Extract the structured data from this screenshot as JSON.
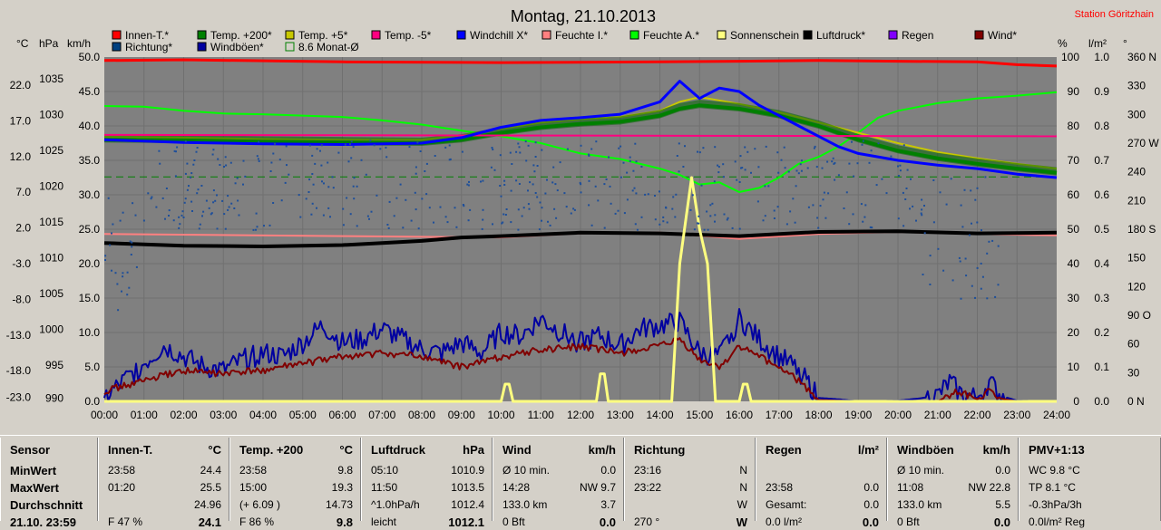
{
  "chart_data": {
    "type": "line",
    "title": "Montag, 21.10.2013",
    "station": "Station Göritzhain",
    "legend": [
      {
        "name": "Innen-T.*",
        "color": "#ff0000"
      },
      {
        "name": "Temp. +200*",
        "color": "#008000"
      },
      {
        "name": "Temp. +5*",
        "color": "#c8c800"
      },
      {
        "name": "Temp. -5*",
        "color": "#ff0080"
      },
      {
        "name": "Windchill X*",
        "color": "#0000ff"
      },
      {
        "name": "Feuchte I.*",
        "color": "#ff8080"
      },
      {
        "name": "Feuchte A.*",
        "color": "#00ff00"
      },
      {
        "name": "Sonnenschein",
        "color": "#ffff80"
      },
      {
        "name": "Luftdruck*",
        "color": "#000000"
      },
      {
        "name": "Regen",
        "color": "#8000ff"
      },
      {
        "name": "Wind*",
        "color": "#800000"
      },
      {
        "name": "Richtung*",
        "color": "#004080"
      },
      {
        "name": "Windböen*",
        "color": "#0000a0"
      },
      {
        "name": "8.6 Monat-Ø",
        "color": "#008000"
      }
    ],
    "axis_headers": {
      "temp": "°C",
      "press": "hPa",
      "wind": "km/h",
      "pct": "%",
      "rain": "l/m²",
      "dir": "°"
    },
    "temp_ticks": [
      "22.0",
      "17.0",
      "12.0",
      "7.0",
      "2.0",
      "-3.0",
      "-8.0",
      "-13.0",
      "-18.0",
      "-23.0"
    ],
    "press_ticks": [
      "1035",
      "1030",
      "1025",
      "1020",
      "1015",
      "1010",
      "1005",
      "1000",
      "995",
      "990"
    ],
    "wind_ticks": [
      "50.0",
      "45.0",
      "40.0",
      "35.0",
      "30.0",
      "25.0",
      "20.0",
      "15.0",
      "10.0",
      "5.0",
      "0.0"
    ],
    "pct_ticks": [
      "100",
      "90",
      "80",
      "70",
      "60",
      "50",
      "40",
      "30",
      "20",
      "10",
      "0"
    ],
    "rain_ticks": [
      "1.0",
      "0.9",
      "0.8",
      "0.7",
      "0.6",
      "0.5",
      "0.4",
      "0.3",
      "0.2",
      "0.1",
      "0.0"
    ],
    "dir_ticks": [
      "360 N",
      "330",
      "300",
      "270 W",
      "240",
      "210",
      "180 S",
      "150",
      "120",
      "90 O",
      "60",
      "30",
      "0 N"
    ],
    "x_ticks": [
      "00:00",
      "01:00",
      "02:00",
      "03:00",
      "04:00",
      "05:00",
      "06:00",
      "07:00",
      "08:00",
      "09:00",
      "10:00",
      "11:00",
      "12:00",
      "13:00",
      "14:00",
      "15:00",
      "16:00",
      "17:00",
      "18:00",
      "19:00",
      "20:00",
      "21:00",
      "22:00",
      "23:00",
      "24:00"
    ],
    "xlim": [
      0,
      24
    ],
    "wind_ylim": [
      0,
      50
    ],
    "series": [
      {
        "name": "Innen-T.*",
        "axis": "wind",
        "x": [
          0,
          2,
          6,
          10,
          14,
          16,
          18,
          20,
          22,
          23,
          24
        ],
        "values": [
          49.5,
          49.6,
          49.3,
          49.2,
          49.3,
          49.4,
          49.5,
          49.4,
          49.3,
          48.9,
          48.7
        ]
      },
      {
        "name": "Feuchte A.*",
        "axis": "wind",
        "x": [
          0,
          1,
          2,
          3,
          4,
          5,
          6,
          7,
          8,
          9,
          10,
          11,
          12,
          13,
          14,
          14.5,
          15,
          15.5,
          16,
          16.5,
          17,
          17.5,
          18,
          18.5,
          19,
          19.5,
          20,
          21,
          22,
          23,
          24
        ],
        "values": [
          42.9,
          42.8,
          42.2,
          41.8,
          41.7,
          41.5,
          41.3,
          40.8,
          40.2,
          39.3,
          38.5,
          37.5,
          36.0,
          35.2,
          33.8,
          32.9,
          31.5,
          31.8,
          30.4,
          31.0,
          32.5,
          34.5,
          35.5,
          37.0,
          39.0,
          41.2,
          42.2,
          43.3,
          44.0,
          44.4,
          44.9
        ]
      },
      {
        "name": "Temp. +5*",
        "axis": "wind",
        "x": [
          0,
          2,
          4,
          6,
          8,
          9,
          10,
          11,
          12,
          13,
          14,
          14.5,
          15,
          16,
          17,
          18,
          19,
          20,
          21,
          22,
          23,
          24
        ],
        "values": [
          38.4,
          38.3,
          38.1,
          38.0,
          38.0,
          38.6,
          39.6,
          40.5,
          41.0,
          41.3,
          42.2,
          43.5,
          44.2,
          43.2,
          42.0,
          40.5,
          39.0,
          37.5,
          36.2,
          35.3,
          34.5,
          33.8
        ]
      },
      {
        "name": "Temp. +200*",
        "axis": "wind",
        "x": [
          0,
          2,
          4,
          6,
          8,
          9,
          10,
          11,
          12,
          13,
          14,
          14.5,
          15,
          16,
          17,
          18,
          19,
          20,
          21,
          22,
          23,
          24
        ],
        "values": [
          38.0,
          37.9,
          37.7,
          37.6,
          37.5,
          38.0,
          39.0,
          39.8,
          40.3,
          40.6,
          41.5,
          42.5,
          43.0,
          42.5,
          41.5,
          40.0,
          38.0,
          36.4,
          35.3,
          34.5,
          33.8,
          33.2
        ]
      },
      {
        "name": "Temp. -5*",
        "axis": "wind",
        "x": [
          0,
          24
        ],
        "values": [
          38.7,
          38.5
        ]
      },
      {
        "name": "Windchill X*",
        "axis": "wind",
        "x": [
          0,
          2,
          4,
          6,
          8,
          9,
          10,
          11,
          12,
          13,
          14,
          14.5,
          15,
          15.5,
          16,
          16.5,
          17,
          17.5,
          18,
          18.5,
          19,
          20,
          21,
          22,
          23,
          24
        ],
        "values": [
          38.0,
          37.6,
          37.4,
          37.3,
          37.5,
          38.3,
          39.8,
          40.8,
          41.2,
          41.7,
          43.5,
          46.5,
          44.0,
          45.5,
          45.0,
          43.0,
          41.5,
          40.0,
          38.5,
          37.0,
          36.0,
          35.0,
          34.3,
          33.8,
          33.0,
          32.5
        ]
      },
      {
        "name": "Feuchte I.*",
        "axis": "wind",
        "x": [
          0,
          6,
          10,
          12,
          14,
          16,
          18,
          20,
          22,
          24
        ],
        "values": [
          24.3,
          24.0,
          23.8,
          24.4,
          24.5,
          23.6,
          24.3,
          24.6,
          24.3,
          24.1
        ]
      },
      {
        "name": "Luftdruck*",
        "axis": "wind",
        "x": [
          0,
          1,
          2,
          4,
          6,
          7,
          8,
          9,
          10,
          12,
          14,
          16,
          18,
          20,
          22,
          24
        ],
        "values": [
          23.0,
          22.8,
          22.6,
          22.5,
          22.7,
          23.0,
          23.3,
          23.8,
          24.0,
          24.5,
          24.4,
          24.0,
          24.6,
          24.7,
          24.4,
          24.5
        ]
      },
      {
        "name": "Windböen*",
        "axis": "wind",
        "x": [
          0,
          0.5,
          1,
          1.5,
          2,
          2.5,
          3,
          3.5,
          4,
          4.5,
          5,
          5.5,
          6,
          6.5,
          7,
          7.5,
          8,
          8.5,
          9,
          9.5,
          10,
          10.5,
          11,
          11.5,
          12,
          12.5,
          13,
          13.5,
          14,
          14.5,
          15,
          15.5,
          16,
          16.5,
          17,
          17.5,
          18,
          18.5,
          19,
          20,
          20.5,
          21,
          21.3,
          21.6,
          22,
          22.3,
          22.6,
          23,
          24
        ],
        "values": [
          0.5,
          3.0,
          5.5,
          8.0,
          6.5,
          5.0,
          4.5,
          6.0,
          7.0,
          6.5,
          8.5,
          11.0,
          8.5,
          9.0,
          10.5,
          9.0,
          7.5,
          7.0,
          8.5,
          7.0,
          10.0,
          9.5,
          12.0,
          10.0,
          8.5,
          9.5,
          8.0,
          10.5,
          11.0,
          11.5,
          7.0,
          6.5,
          12.0,
          9.0,
          6.5,
          4.5,
          0.5,
          0.3,
          0.0,
          0.1,
          0.4,
          0.8,
          2.8,
          1.0,
          0.5,
          2.8,
          0.8,
          0.1,
          0.0
        ]
      },
      {
        "name": "Wind*",
        "axis": "wind",
        "x": [
          0,
          1,
          2,
          3,
          4,
          5,
          6,
          7,
          8,
          9,
          10,
          11,
          12,
          13,
          14,
          14.5,
          15,
          15.5,
          16,
          16.5,
          17,
          17.5,
          18,
          19,
          20,
          21,
          21.5,
          22,
          22.3,
          22.6,
          23,
          24
        ],
        "values": [
          1.5,
          3.0,
          4.5,
          4.0,
          4.5,
          5.5,
          6.5,
          7.0,
          6.5,
          5.0,
          6.5,
          7.5,
          8.0,
          7.0,
          8.0,
          9.0,
          6.0,
          5.0,
          8.0,
          6.5,
          5.0,
          3.0,
          0.2,
          0.0,
          0.0,
          0.0,
          1.5,
          0.3,
          1.5,
          0.4,
          0.0,
          0.0
        ]
      },
      {
        "name": "Sonnenschein",
        "axis": "wind",
        "x": [
          0,
          10,
          10.1,
          10.2,
          10.3,
          12.4,
          12.5,
          12.6,
          12.7,
          14.3,
          14.5,
          14.8,
          15.0,
          15.2,
          15.4,
          15.5,
          16,
          16.1,
          16.2,
          16.3,
          24
        ],
        "values": [
          0,
          0,
          2.5,
          2.5,
          0,
          0,
          4,
          4,
          0,
          0,
          20.0,
          32.5,
          25.0,
          20.0,
          0,
          0,
          0,
          2.5,
          2.5,
          0,
          0
        ]
      }
    ],
    "monthly_avg": {
      "name": "8.6 Monat-Ø",
      "value": 32.6
    }
  },
  "table": [
    {
      "header": "Sensor",
      "unit": "",
      "rows": [
        {
          "label": "MinWert"
        },
        {
          "label": "MaxWert"
        },
        {
          "label": "Durchschnitt"
        },
        {
          "label": "21.10. 23:59"
        }
      ]
    },
    {
      "header": "Innen-T.",
      "unit": "°C",
      "rows": [
        {
          "a": "23:58",
          "b": "24.4"
        },
        {
          "a": "01:20",
          "b": "25.5"
        },
        {
          "a": "",
          "b": "24.96"
        },
        {
          "a": "F 47 %",
          "b": "24.1"
        }
      ]
    },
    {
      "header": "Temp. +200",
      "unit": "°C",
      "rows": [
        {
          "a": "23:58",
          "b": "9.8"
        },
        {
          "a": "15:00",
          "b": "19.3"
        },
        {
          "a": "(+ 6.09 )",
          "b": "14.73"
        },
        {
          "a": "F 86 %",
          "b": "9.8"
        }
      ]
    },
    {
      "header": "Luftdruck",
      "unit": "hPa",
      "rows": [
        {
          "a": "05:10",
          "b": "1010.9"
        },
        {
          "a": "11:50",
          "b": "1013.5"
        },
        {
          "a": "^1.0hPa/h",
          "b": "1012.4"
        },
        {
          "a": "leicht",
          "b": "1012.1"
        }
      ]
    },
    {
      "header": "Wind",
      "unit": "km/h",
      "rows": [
        {
          "a": "Ø 10 min.",
          "b": "0.0"
        },
        {
          "a": "14:28",
          "m": "NW 9.7",
          "b": ""
        },
        {
          "a": "133.0 km",
          "b": "3.7"
        },
        {
          "a": "0 Bft",
          "b": "0.0"
        }
      ]
    },
    {
      "header": "Richtung",
      "unit": "",
      "rows": [
        {
          "a": "23:16",
          "b": "N"
        },
        {
          "a": "23:22",
          "b": "N"
        },
        {
          "a": "",
          "b": "W"
        },
        {
          "a": "270 °",
          "b": "W"
        }
      ]
    },
    {
      "header": "Regen",
      "unit": "l/m²",
      "rows": [
        {
          "a": "",
          "b": ""
        },
        {
          "a": "23:58",
          "b": "0.0"
        },
        {
          "a": "Gesamt:",
          "b": "0.0"
        },
        {
          "a": "0.0 l/m²",
          "b": "0.0"
        }
      ]
    },
    {
      "header": "Windböen",
      "unit": "km/h",
      "rows": [
        {
          "a": "Ø 10 min.",
          "b": "0.0"
        },
        {
          "a": "11:08",
          "m": "NW 22.8",
          "b": ""
        },
        {
          "a": "133.0 km",
          "b": "5.5"
        },
        {
          "a": "0 Bft",
          "b": "0.0"
        }
      ]
    },
    {
      "header": "PMV+1:13",
      "unit": "",
      "rows": [
        {
          "a": "WC 9.8 °C",
          "b": ""
        },
        {
          "a": "TP 8.1 °C",
          "b": ""
        },
        {
          "a": "-0.3hPa/3h",
          "b": ""
        },
        {
          "a": "0.0l/m² Reg",
          "b": ""
        }
      ]
    }
  ]
}
